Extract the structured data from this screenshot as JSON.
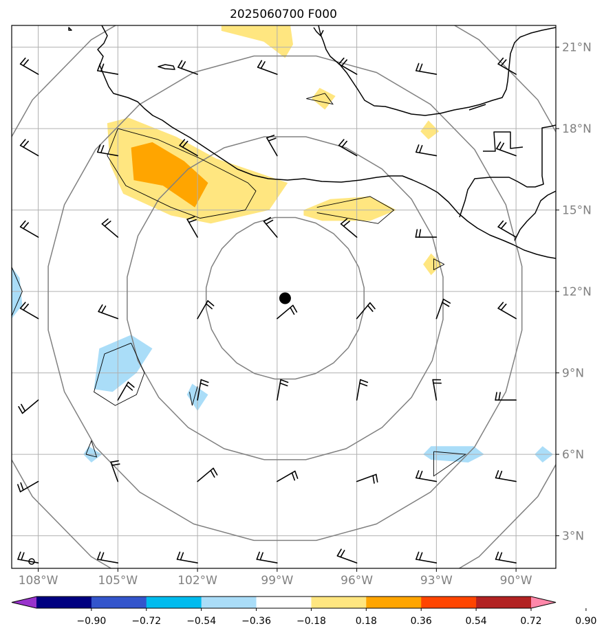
{
  "title": "2025060700 F000",
  "map": {
    "lon_range": [
      -109,
      -88.5
    ],
    "lat_range": [
      1.8,
      21.8
    ],
    "center_marker": {
      "lon": -98.7,
      "lat": 11.75
    },
    "ring_radii_deg": [
      3,
      6,
      9,
      12
    ],
    "colors": {
      "coast": "#000000",
      "grid": "#b0b0b0",
      "rings": "#808080",
      "labels": "#808080"
    }
  },
  "axes": {
    "lon_ticks": [
      "108°W",
      "105°W",
      "102°W",
      "99°W",
      "96°W",
      "93°W",
      "90°W"
    ],
    "lat_ticks": [
      "21°N",
      "18°N",
      "15°N",
      "12°N",
      "9°N",
      "6°N",
      "3°N"
    ]
  },
  "colorbar": {
    "tick_labels": [
      "−0.90",
      "−0.72",
      "−0.54",
      "−0.36",
      "−0.18",
      "0.18",
      "0.36",
      "0.54",
      "0.72",
      "0.90"
    ],
    "colors": [
      "#9933cc",
      "#000080",
      "#3355cc",
      "#00bbee",
      "#aaddf8",
      "#ffffff",
      "#ffe680",
      "#ffa500",
      "#ff4500",
      "#b22222",
      "#ff88aa"
    ]
  },
  "fields": {
    "yellow_areas": [
      {
        "name": "yellow-patch-guerrero",
        "color": "#ffe680",
        "pts": [
          [
            -105.4,
            18.2
          ],
          [
            -104.6,
            18.4
          ],
          [
            -102.8,
            17.7
          ],
          [
            -101.3,
            16.9
          ],
          [
            -99.8,
            16.4
          ],
          [
            -98.6,
            16.0
          ],
          [
            -99.3,
            15.0
          ],
          [
            -101.5,
            14.5
          ],
          [
            -103.0,
            14.8
          ],
          [
            -104.8,
            15.6
          ],
          [
            -105.3,
            16.7
          ]
        ]
      },
      {
        "name": "yellow-patch-oaxaca",
        "color": "#ffe680",
        "pts": [
          [
            -98.0,
            15.0
          ],
          [
            -97.0,
            15.4
          ],
          [
            -95.5,
            15.5
          ],
          [
            -94.5,
            15.0
          ],
          [
            -95.5,
            14.6
          ],
          [
            -97.3,
            14.6
          ],
          [
            -98.0,
            14.8
          ]
        ]
      },
      {
        "name": "yellow-patch-north",
        "color": "#ffe680",
        "pts": [
          [
            -101.1,
            21.8
          ],
          [
            -98.5,
            21.8
          ],
          [
            -98.4,
            21.1
          ],
          [
            -98.7,
            20.6
          ],
          [
            -99.5,
            21.2
          ],
          [
            -101.1,
            21.6
          ]
        ]
      },
      {
        "name": "yellow-patch-small-a",
        "color": "#ffe680",
        "pts": [
          [
            -97.4,
            19.5
          ],
          [
            -96.8,
            19.2
          ],
          [
            -97.2,
            18.7
          ],
          [
            -97.7,
            19.1
          ]
        ]
      },
      {
        "name": "yellow-patch-small-b",
        "color": "#ffe680",
        "pts": [
          [
            -93.3,
            18.3
          ],
          [
            -92.9,
            17.9
          ],
          [
            -93.3,
            17.6
          ],
          [
            -93.6,
            17.9
          ]
        ]
      },
      {
        "name": "yellow-patch-small-c",
        "color": "#ffe680",
        "pts": [
          [
            -93.2,
            13.4
          ],
          [
            -92.8,
            13.0
          ],
          [
            -93.2,
            12.6
          ],
          [
            -93.5,
            13.0
          ]
        ]
      }
    ],
    "orange_areas": [
      {
        "name": "orange-patch-guerrero",
        "color": "#ffa500",
        "pts": [
          [
            -104.5,
            17.3
          ],
          [
            -103.7,
            17.5
          ],
          [
            -102.5,
            16.8
          ],
          [
            -101.6,
            16.0
          ],
          [
            -102.1,
            15.1
          ],
          [
            -103.3,
            15.9
          ],
          [
            -104.4,
            16.1
          ]
        ]
      }
    ],
    "blue_areas": [
      {
        "name": "blue-patch-southwest",
        "color": "#aaddf8",
        "pts": [
          [
            -105.7,
            9.9
          ],
          [
            -104.5,
            10.4
          ],
          [
            -103.7,
            9.9
          ],
          [
            -104.3,
            9.0
          ],
          [
            -105.2,
            8.3
          ],
          [
            -105.9,
            8.4
          ]
        ]
      },
      {
        "name": "blue-patch-small-a",
        "color": "#aaddf8",
        "pts": [
          [
            -102.2,
            8.6
          ],
          [
            -101.6,
            8.2
          ],
          [
            -102.0,
            7.6
          ],
          [
            -102.4,
            8.2
          ]
        ]
      },
      {
        "name": "blue-patch-small-b",
        "color": "#aaddf8",
        "pts": [
          [
            -106.1,
            6.3
          ],
          [
            -105.6,
            6.0
          ],
          [
            -106.0,
            5.7
          ],
          [
            -106.3,
            6.0
          ]
        ]
      },
      {
        "name": "blue-patch-east",
        "color": "#aaddf8",
        "pts": [
          [
            -93.2,
            6.3
          ],
          [
            -91.6,
            6.3
          ],
          [
            -91.2,
            6.0
          ],
          [
            -91.8,
            5.7
          ],
          [
            -93.2,
            5.8
          ],
          [
            -93.5,
            6.0
          ]
        ]
      },
      {
        "name": "blue-patch-far-east",
        "color": "#aaddf8",
        "pts": [
          [
            -89.0,
            6.3
          ],
          [
            -88.6,
            6.0
          ],
          [
            -89.0,
            5.7
          ],
          [
            -89.3,
            6.0
          ]
        ]
      },
      {
        "name": "blue-patch-west-edge",
        "color": "#aaddf8",
        "pts": [
          [
            -109.0,
            12.9
          ],
          [
            -108.7,
            12.5
          ],
          [
            -108.6,
            11.5
          ],
          [
            -109.0,
            11.0
          ]
        ]
      }
    ],
    "thin_contours": [
      {
        "name": "thin-contour-guerrero",
        "pts": [
          [
            -105.0,
            18.0
          ],
          [
            -103.5,
            17.6
          ],
          [
            -101.9,
            16.9
          ],
          [
            -100.1,
            16.0
          ],
          [
            -99.8,
            15.7
          ],
          [
            -100.2,
            15.0
          ],
          [
            -101.9,
            14.7
          ],
          [
            -103.0,
            15.1
          ],
          [
            -104.7,
            15.9
          ],
          [
            -105.4,
            17.0
          ],
          [
            -105.0,
            18.0
          ]
        ]
      },
      {
        "name": "thin-contour-oaxaca",
        "pts": [
          [
            -97.5,
            15.1
          ],
          [
            -95.5,
            15.5
          ],
          [
            -94.6,
            15.0
          ],
          [
            -95.2,
            14.5
          ],
          [
            -97.5,
            14.9
          ]
        ]
      },
      {
        "name": "thin-contour-small-north",
        "pts": [
          [
            -97.2,
            19.3
          ],
          [
            -97.9,
            19.1
          ],
          [
            -96.9,
            18.9
          ],
          [
            -97.2,
            19.3
          ]
        ]
      },
      {
        "name": "thin-contour-southwest",
        "pts": [
          [
            -104.5,
            10.1
          ],
          [
            -104.0,
            9.0
          ],
          [
            -104.3,
            8.2
          ],
          [
            -105.1,
            7.8
          ],
          [
            -105.9,
            8.3
          ],
          [
            -105.5,
            9.7
          ],
          [
            -104.5,
            10.1
          ]
        ]
      },
      {
        "name": "thin-contour-small-a",
        "pts": [
          [
            -102.3,
            8.3
          ],
          [
            -102.2,
            7.8
          ],
          [
            -102.0,
            8.5
          ]
        ]
      },
      {
        "name": "thin-contour-small-b",
        "pts": [
          [
            -106.2,
            6.0
          ],
          [
            -106.0,
            6.5
          ],
          [
            -105.8,
            5.9
          ],
          [
            -106.2,
            6.0
          ]
        ]
      },
      {
        "name": "thin-contour-east",
        "pts": [
          [
            -93.1,
            6.1
          ],
          [
            -91.9,
            6.0
          ],
          [
            -93.1,
            5.2
          ],
          [
            -93.1,
            6.1
          ]
        ]
      },
      {
        "name": "thin-contour-small-c",
        "pts": [
          [
            -92.7,
            13.0
          ],
          [
            -93.1,
            13.2
          ],
          [
            -93.1,
            12.8
          ],
          [
            -92.7,
            13.0
          ]
        ]
      },
      {
        "name": "thin-contour-west-edge",
        "pts": [
          [
            -109.0,
            12.9
          ],
          [
            -108.6,
            12.0
          ],
          [
            -109.0,
            11.1
          ]
        ]
      }
    ]
  },
  "wind_barbs": {
    "lons": [
      -108,
      -105,
      -102,
      -99,
      -96,
      -93,
      -90
    ],
    "lats": [
      20,
      17,
      14,
      11,
      8,
      5,
      2
    ],
    "directions_deg": [
      [
        300,
        280,
        290,
        290,
        300,
        280,
        300
      ],
      [
        300,
        280,
        300,
        330,
        300,
        280,
        290
      ],
      [
        300,
        310,
        330,
        320,
        310,
        270,
        300
      ],
      [
        300,
        290,
        30,
        50,
        40,
        20,
        300
      ],
      [
        230,
        30,
        10,
        10,
        10,
        350,
        270
      ],
      [
        240,
        340,
        50,
        60,
        70,
        280,
        280
      ],
      [
        280,
        280,
        280,
        280,
        290,
        280,
        280
      ]
    ]
  }
}
